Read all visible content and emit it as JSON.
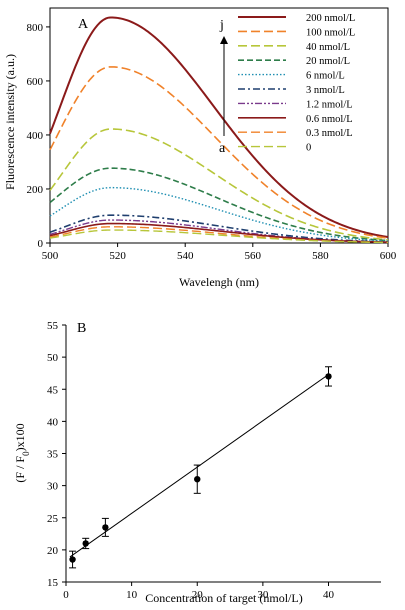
{
  "chart_data": [
    {
      "type": "line",
      "panel_label": "A",
      "xlabel": "Wavelengh (nm)",
      "ylabel": "Fluorescence intensity (a.u.)",
      "xlim": [
        500,
        600
      ],
      "ylim": [
        0,
        870
      ],
      "xticks": [
        "500",
        "520",
        "540",
        "560",
        "580",
        "600"
      ],
      "yticks": [
        "0",
        "200",
        "400",
        "600",
        "800"
      ],
      "arrow_top_label": "j",
      "arrow_bottom_label": "a",
      "peak_x": 518,
      "series": [
        {
          "name": "200 nmol/L",
          "peak": 835,
          "start": 405,
          "end": 22,
          "color": "#8B1A1A",
          "dash": "solid",
          "width": 2
        },
        {
          "name": "100 nmol/L",
          "peak": 652,
          "start": 345,
          "end": 18,
          "color": "#F0822A",
          "dash": "long",
          "width": 1.6
        },
        {
          "name": "40 nmol/L",
          "peak": 422,
          "start": 195,
          "end": 12,
          "color": "#B7C63A",
          "dash": "long",
          "width": 1.6
        },
        {
          "name": "20 nmol/L",
          "peak": 277,
          "start": 150,
          "end": 9,
          "color": "#2E7D4A",
          "dash": "medium",
          "width": 1.6
        },
        {
          "name": "6 nmol/L",
          "peak": 205,
          "start": 100,
          "end": 7,
          "color": "#1F8FB2",
          "dash": "dot",
          "width": 1.4
        },
        {
          "name": "3 nmol/L",
          "peak": 103,
          "start": 40,
          "end": 4,
          "color": "#1F3F6E",
          "dash": "dashdot",
          "width": 1.6
        },
        {
          "name": "1.2 nmol/L",
          "peak": 85,
          "start": 32,
          "end": 3,
          "color": "#7A3A8C",
          "dash": "dashdotdot",
          "width": 1.4
        },
        {
          "name": "0.6 nmol/L",
          "peak": 72,
          "start": 27,
          "end": 3,
          "color": "#8B1A1A",
          "dash": "solid",
          "width": 1.6
        },
        {
          "name": "0.3 nmol/L",
          "peak": 60,
          "start": 22,
          "end": 2,
          "color": "#F0822A",
          "dash": "long",
          "width": 1.4
        },
        {
          "name": "0",
          "peak": 48,
          "start": 18,
          "end": 2,
          "color": "#B7C63A",
          "dash": "long",
          "width": 1.4
        }
      ]
    },
    {
      "type": "scatter",
      "panel_label": "B",
      "xlabel": "Concentration of target (nmol/L)",
      "ylabel_main": "(F / F",
      "ylabel_sub": "0",
      "ylabel_tail": ")x100",
      "xlim": [
        0,
        48
      ],
      "ylim": [
        15,
        55
      ],
      "xticks": [
        "0",
        "10",
        "20",
        "30",
        "40"
      ],
      "yticks": [
        "15",
        "20",
        "25",
        "30",
        "35",
        "40",
        "45",
        "50",
        "55"
      ],
      "points": [
        {
          "x": 1,
          "y": 18.5,
          "err": 1.3
        },
        {
          "x": 3,
          "y": 21.0,
          "err": 0.8
        },
        {
          "x": 6,
          "y": 23.5,
          "err": 1.4
        },
        {
          "x": 20,
          "y": 31.0,
          "err": 2.2
        },
        {
          "x": 40,
          "y": 47.0,
          "err": 1.5
        }
      ],
      "fit_line": {
        "x": [
          0.6,
          40
        ],
        "y": [
          18.9,
          47.3
        ]
      }
    }
  ]
}
